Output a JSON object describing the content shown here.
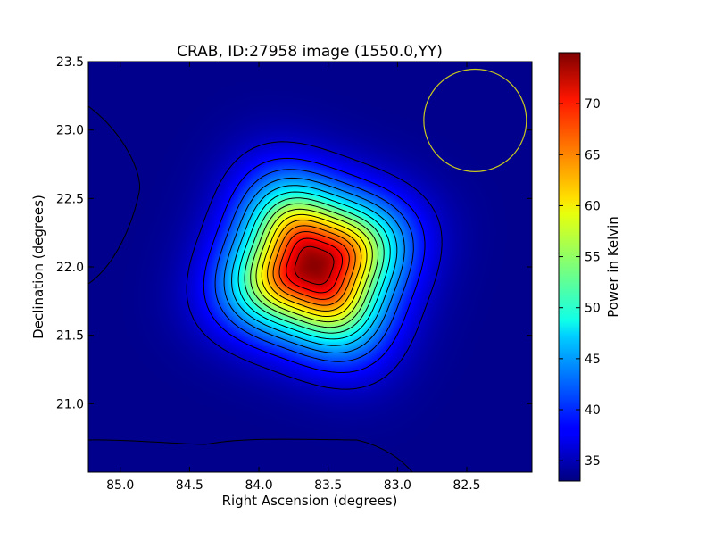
{
  "chart_data": {
    "type": "heatmap",
    "title": "CRAB, ID:27958 image (1550.0,YY)",
    "xlabel": "Right Ascension (degrees)",
    "ylabel": "Declination (degrees)",
    "xlim": [
      85.23,
      82.03
    ],
    "ylim": [
      20.5,
      23.5
    ],
    "x_ticks": [
      "85.0",
      "84.5",
      "84.0",
      "83.5",
      "83.0",
      "82.5"
    ],
    "x_tick_values": [
      85.0,
      84.5,
      84.0,
      83.5,
      83.0,
      82.5
    ],
    "y_ticks": [
      "21.0",
      "21.5",
      "22.0",
      "22.5",
      "23.0",
      "23.5"
    ],
    "y_tick_values": [
      21.0,
      21.5,
      22.0,
      22.5,
      23.0,
      23.5
    ],
    "colorbar": {
      "label": "Power in Kelvin",
      "range": [
        33,
        75
      ],
      "ticks": [
        "35",
        "40",
        "45",
        "50",
        "55",
        "60",
        "65",
        "70"
      ],
      "tick_values": [
        35,
        40,
        45,
        50,
        55,
        60,
        65,
        70
      ]
    },
    "source": {
      "ra": 83.6,
      "dec": 22.01,
      "peak": 74.5
    },
    "background_level": 33.5,
    "beam_circle": {
      "ra": 82.44,
      "dec": 23.07,
      "radius_deg": 0.37,
      "color": "#c8c820"
    },
    "colormap": "jet",
    "contour_color": "#000000"
  }
}
